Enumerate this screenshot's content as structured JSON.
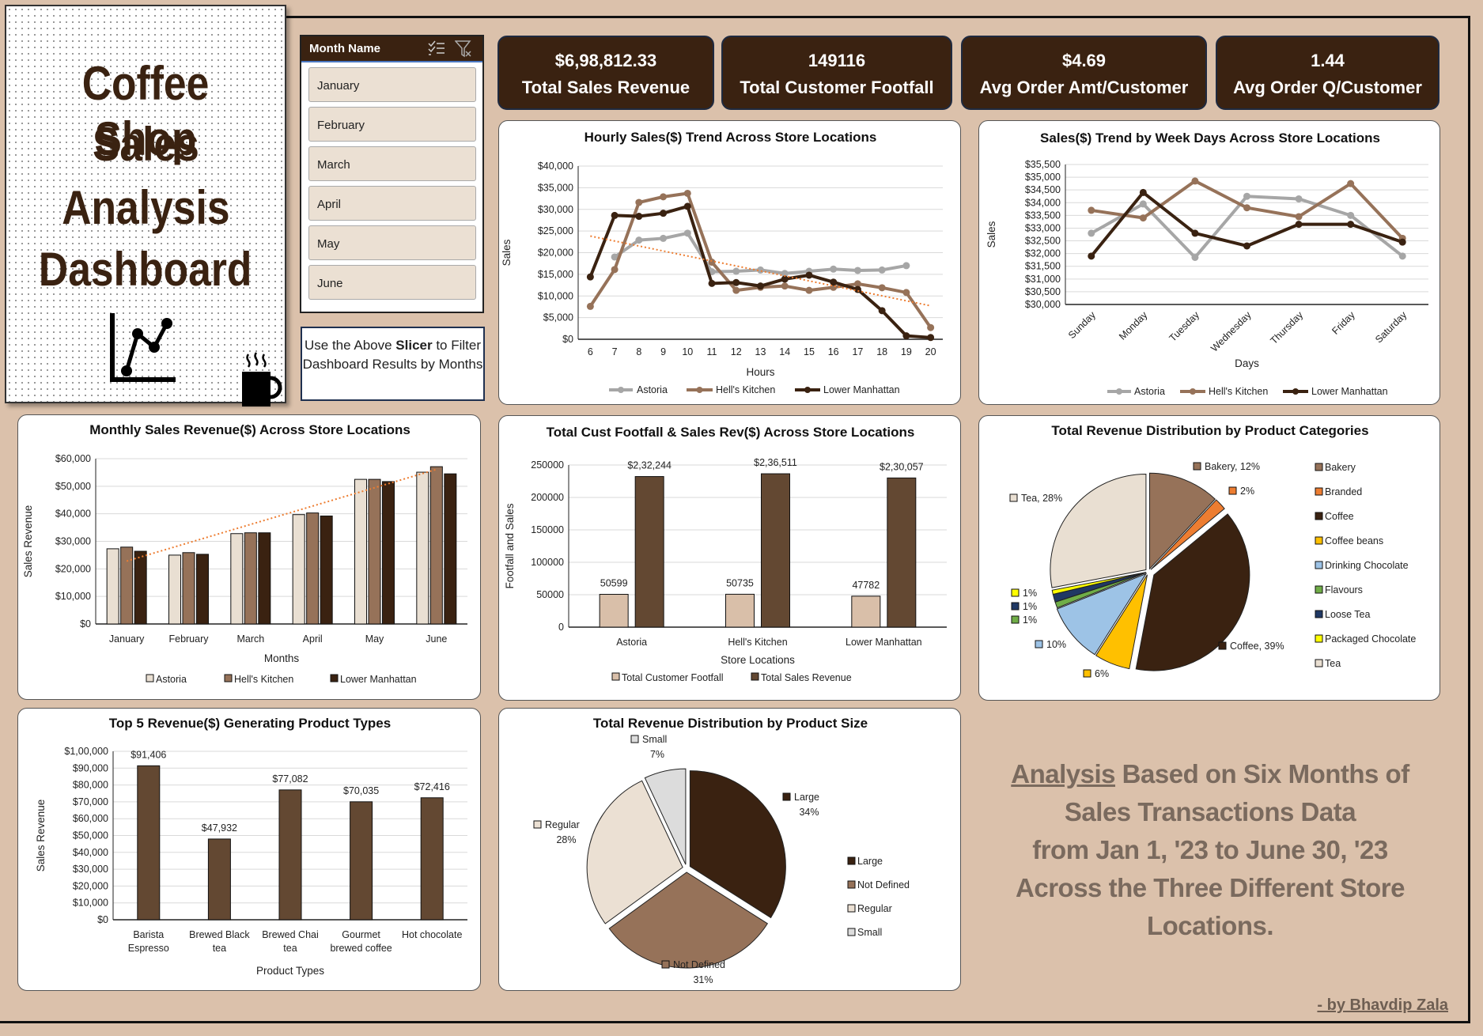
{
  "title_panel": {
    "lines": [
      "Coffee Shop",
      "Sales",
      "Analysis",
      "Dashboard"
    ],
    "icons": [
      "line-chart-icon",
      "coffee-cup-icon"
    ]
  },
  "slicer": {
    "header": "Month Name",
    "icons": [
      "multi-select-icon",
      "clear-filter-icon"
    ],
    "items": [
      "January",
      "February",
      "March",
      "April",
      "May",
      "June"
    ]
  },
  "note": {
    "prefix": "Use the Above ",
    "bold": "Slicer",
    "suffix": " to Filter Dashboard Results by Months"
  },
  "kpis": [
    {
      "value": "$6,98,812.33",
      "label": "Total Sales Revenue"
    },
    {
      "value": "149116",
      "label": "Total Customer Footfall"
    },
    {
      "value": "$4.69",
      "label": "Avg Order Amt/Customer"
    },
    {
      "value": "1.44",
      "label": "Avg Order Q/Customer"
    }
  ],
  "summary": {
    "underlined": "Analysis",
    "first_rest": " Based on Six Months of",
    "lines": [
      "Sales Transactions Data",
      "from Jan 1, '23 to June 30, '23",
      "Across the Three Different Store",
      "Locations."
    ]
  },
  "author": "- by Bhavdip Zala",
  "colors": {
    "background": "#dbc1ab",
    "dark_brown": "#3a2211",
    "medium_brown": "#967259",
    "cream": "#ebe0d3",
    "accent_trend": "#ed7d31"
  },
  "chart_data": [
    {
      "type": "line",
      "title": "Hourly Sales($) Trend Across Store Locations",
      "xlabel": "Hours",
      "ylabel": "Sales",
      "categories": [
        "6",
        "7",
        "8",
        "9",
        "10",
        "11",
        "12",
        "13",
        "14",
        "15",
        "16",
        "17",
        "18",
        "19",
        "20"
      ],
      "ylim": [
        0,
        40000
      ],
      "ytick_labels": [
        "$0",
        "$5,000",
        "$10,000",
        "$15,000",
        "$20,000",
        "$25,000",
        "$30,000",
        "$35,000",
        "$40,000"
      ],
      "grid": true,
      "legend": "bottom",
      "series": [
        {
          "name": "Astoria",
          "color": "#a6a6a6",
          "values": [
            null,
            19000,
            22900,
            23300,
            24500,
            15600,
            15700,
            16000,
            15200,
            15700,
            16200,
            15900,
            16000,
            17000,
            null
          ]
        },
        {
          "name": "Hell's Kitchen",
          "color": "#967259",
          "values": [
            7600,
            16100,
            31600,
            32900,
            33700,
            17800,
            11300,
            12000,
            12300,
            11300,
            12000,
            12800,
            11900,
            10800,
            2700
          ]
        },
        {
          "name": "Lower Manhattan",
          "color": "#3a2211",
          "values": [
            14400,
            28600,
            28400,
            29100,
            30700,
            12900,
            13100,
            12300,
            13900,
            14800,
            13200,
            11500,
            6600,
            800,
            400
          ]
        }
      ],
      "trendline": {
        "type": "linear",
        "series": "Hell's Kitchen",
        "color": "#ed7d31"
      }
    },
    {
      "type": "line",
      "title": "Sales($) Trend by Week Days Across Store Locations",
      "xlabel": "Days",
      "ylabel": "Sales",
      "categories": [
        "Sunday",
        "Monday",
        "Tuesday",
        "Wednesday",
        "Thursday",
        "Friday",
        "Saturday"
      ],
      "ylim": [
        30000,
        35500
      ],
      "ytick_labels": [
        "$30,000",
        "$30,500",
        "$31,000",
        "$31,500",
        "$32,000",
        "$32,500",
        "$33,000",
        "$33,500",
        "$34,000",
        "$34,500",
        "$35,000",
        "$35,500"
      ],
      "grid": true,
      "legend": "bottom",
      "series": [
        {
          "name": "Astoria",
          "color": "#a6a6a6",
          "values": [
            32800,
            33950,
            31850,
            34250,
            34150,
            33500,
            31900
          ]
        },
        {
          "name": "Hell's Kitchen",
          "color": "#967259",
          "values": [
            33700,
            33400,
            34850,
            33800,
            33450,
            34750,
            32600
          ]
        },
        {
          "name": "Lower Manhattan",
          "color": "#3a2211",
          "values": [
            31900,
            34400,
            32800,
            32300,
            33150,
            33150,
            32450
          ]
        }
      ]
    },
    {
      "type": "bar",
      "title": "Monthly Sales Revenue($) Across Store Locations",
      "xlabel": "Months",
      "ylabel": "Sales Revenue",
      "categories": [
        "January",
        "February",
        "March",
        "April",
        "May",
        "June"
      ],
      "ylim": [
        0,
        60000
      ],
      "ytick_labels": [
        "$0",
        "$10,000",
        "$20,000",
        "$30,000",
        "$40,000",
        "$50,000",
        "$60,000"
      ],
      "grid": true,
      "legend": "bottom",
      "series": [
        {
          "name": "Astoria",
          "color": "#e9dfd2",
          "values": [
            27300,
            25000,
            32800,
            39700,
            52500,
            55100
          ]
        },
        {
          "name": "Hell's Kitchen",
          "color": "#967259",
          "values": [
            27900,
            25900,
            33100,
            40300,
            52500,
            57100
          ]
        },
        {
          "name": "Lower Manhattan",
          "color": "#3a2211",
          "values": [
            26400,
            25300,
            33100,
            39200,
            51700,
            54500
          ]
        }
      ],
      "trendline": {
        "type": "linear",
        "series": "Hell's Kitchen",
        "color": "#ed7d31"
      }
    },
    {
      "type": "bar",
      "title": "Total Cust Footfall & Sales Rev($) Across Store Locations",
      "xlabel": "Store Locations",
      "ylabel": "Footfall and Sales",
      "categories": [
        "Astoria",
        "Hell's Kitchen",
        "Lower Manhattan"
      ],
      "ylim": [
        0,
        250000
      ],
      "ytick_labels": [
        "0",
        "50000",
        "100000",
        "150000",
        "200000",
        "250000"
      ],
      "grid": true,
      "legend": "bottom",
      "series": [
        {
          "name": "Total Customer Footfall",
          "color": "#d9bfa9",
          "values": [
            50599,
            50735,
            47782
          ],
          "data_labels": [
            "50599",
            "50735",
            "47782"
          ]
        },
        {
          "name": "Total Sales Revenue",
          "color": "#634832",
          "values": [
            232244,
            236511,
            230057
          ],
          "data_labels": [
            "$2,32,244",
            "$2,36,511",
            "$2,30,057"
          ]
        }
      ]
    },
    {
      "type": "pie",
      "title": "Total Revenue Distribution by Product Categories",
      "legend": "right",
      "slices": [
        {
          "name": "Bakery",
          "value": 12,
          "color": "#967259",
          "label": "Bakery, 12%"
        },
        {
          "name": "Branded",
          "value": 2,
          "color": "#ed7d31",
          "label": "2%"
        },
        {
          "name": "Coffee",
          "value": 39,
          "color": "#3a2211",
          "label": "Coffee, 39%"
        },
        {
          "name": "Coffee beans",
          "value": 6,
          "color": "#ffc000",
          "label": "6%"
        },
        {
          "name": "Drinking Chocolate",
          "value": 10,
          "color": "#9dc3e6",
          "label": "10%"
        },
        {
          "name": "Flavours",
          "value": 1,
          "color": "#70ad47",
          "label": "1%"
        },
        {
          "name": "Loose Tea",
          "value": 1.3,
          "color": "#203864",
          "label": "1%"
        },
        {
          "name": "Packaged Chocolate",
          "value": 0.7,
          "color": "#ffff00",
          "label": "1%"
        },
        {
          "name": "Tea",
          "value": 28,
          "color": "#e9dfd2",
          "label": "Tea, 28%"
        }
      ]
    },
    {
      "type": "bar",
      "title": "Top 5 Revenue($) Generating Product Types",
      "xlabel": "Product Types",
      "ylabel": "Sales Revenue",
      "categories": [
        [
          "Barista",
          "Espresso"
        ],
        [
          "Brewed Black",
          "tea"
        ],
        [
          "Brewed Chai",
          "tea"
        ],
        [
          "Gourmet",
          "brewed coffee"
        ],
        [
          "Hot chocolate"
        ]
      ],
      "ylim": [
        0,
        100000
      ],
      "ytick_labels": [
        "$0",
        "$10,000",
        "$20,000",
        "$30,000",
        "$40,000",
        "$50,000",
        "$60,000",
        "$70,000",
        "$80,000",
        "$90,000",
        "$1,00,000"
      ],
      "grid": true,
      "series": [
        {
          "color": "#634832",
          "values": [
            91406,
            47932,
            77082,
            70035,
            72416
          ],
          "data_labels": [
            "$91,406",
            "$47,932",
            "$77,082",
            "$70,035",
            "$72,416"
          ]
        }
      ]
    },
    {
      "type": "pie",
      "title": "Total Revenue Distribution by Product Size",
      "legend": "right",
      "slices": [
        {
          "name": "Large",
          "value": 34,
          "color": "#3a2211",
          "label": "Large",
          "pct": "34%"
        },
        {
          "name": "Not Defined",
          "value": 31,
          "color": "#967259",
          "label": "Not Defined",
          "pct": "31%"
        },
        {
          "name": "Regular",
          "value": 28,
          "color": "#ebe0d3",
          "label": "Regular",
          "pct": "28%"
        },
        {
          "name": "Small",
          "value": 7,
          "color": "#dcdcdc",
          "label": "Small",
          "pct": "7%"
        }
      ]
    }
  ]
}
